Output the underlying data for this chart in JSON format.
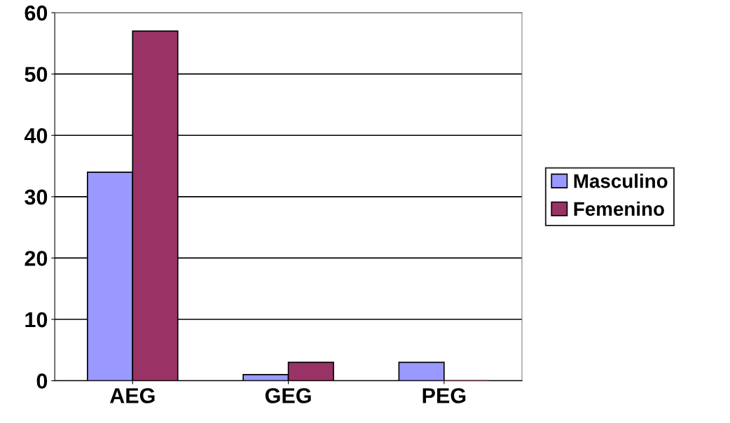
{
  "chart_data": {
    "type": "bar",
    "categories": [
      "AEG",
      "GEG",
      "PEG"
    ],
    "series": [
      {
        "name": "Masculino",
        "color": "#9999ff",
        "values": [
          34,
          1,
          3
        ]
      },
      {
        "name": "Femenino",
        "color": "#993366",
        "values": [
          57,
          3,
          0
        ]
      }
    ],
    "ylim": [
      0,
      60
    ],
    "yticks": [
      0,
      10,
      20,
      30,
      40,
      50,
      60
    ],
    "grid": "y",
    "legend": "right"
  }
}
